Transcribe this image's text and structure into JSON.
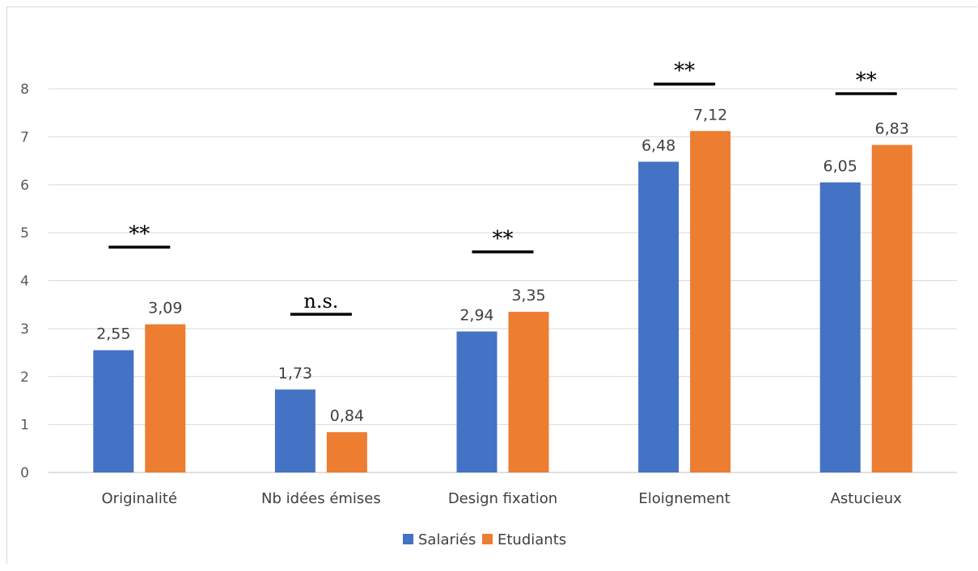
{
  "chart_data": {
    "type": "bar",
    "categories": [
      "Originalité",
      "Nb idées émises",
      "Design fixation",
      "Eloignement",
      "Astucieux"
    ],
    "series": [
      {
        "name": "Salariés",
        "values": [
          2.55,
          1.73,
          2.94,
          6.48,
          6.05
        ],
        "labels": [
          "2,55",
          "1,73",
          "2,94",
          "6,48",
          "6,05"
        ],
        "color": "#4472C4"
      },
      {
        "name": "Etudiants",
        "values": [
          3.09,
          0.84,
          3.35,
          7.12,
          6.83
        ],
        "labels": [
          "3,09",
          "0,84",
          "3,35",
          "7,12",
          "6,83"
        ],
        "color": "#ED7D31"
      }
    ],
    "significance": [
      "**",
      "n.s.",
      "**",
      "**",
      "**"
    ],
    "significance_level": [
      4.7,
      3.3,
      4.6,
      8.1,
      7.9
    ],
    "ylim": [
      0,
      8
    ],
    "yticks": [
      "0",
      "1",
      "2",
      "3",
      "4",
      "5",
      "6",
      "7",
      "8"
    ],
    "grid": true,
    "legend_position": "bottom"
  }
}
